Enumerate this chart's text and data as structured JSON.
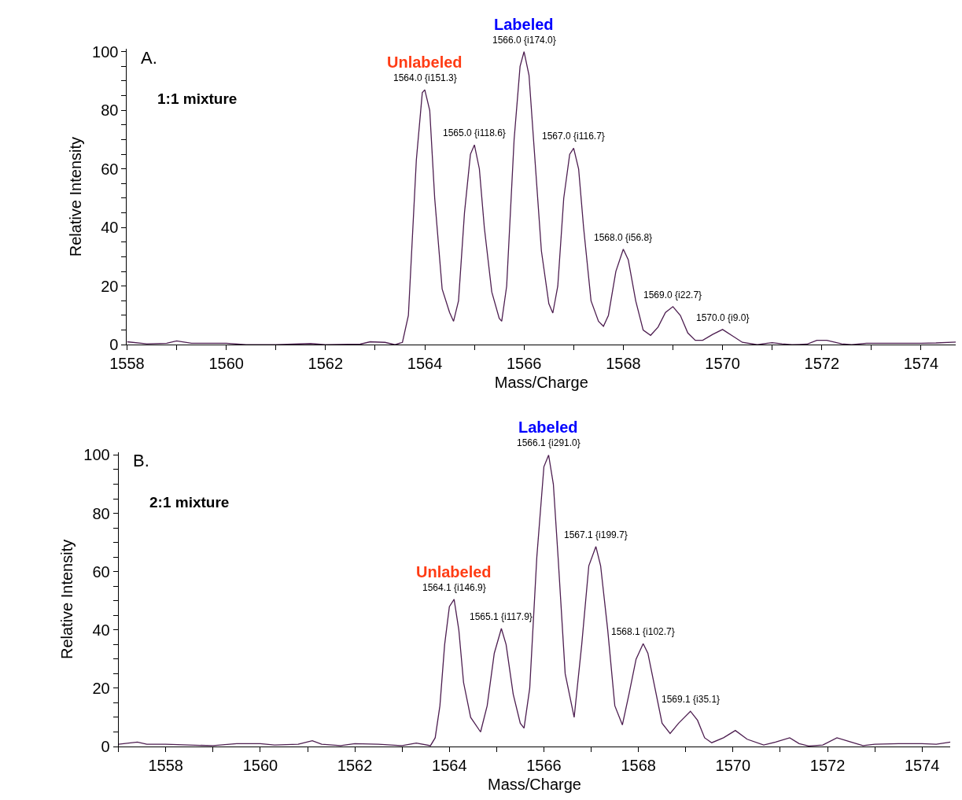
{
  "chart_data": [
    {
      "type": "line",
      "xlabel": "Mass/Charge",
      "ylabel": "Relative Intensity",
      "x": [
        1558.0,
        1558.4,
        1558.8,
        1559.0,
        1559.3,
        1560.0,
        1560.4,
        1561.0,
        1561.7,
        1562.0,
        1562.7,
        1562.9,
        1563.2,
        1563.4,
        1563.55,
        1563.67,
        1563.83,
        1563.95,
        1564.0,
        1564.1,
        1564.2,
        1564.35,
        1564.5,
        1564.58,
        1564.68,
        1564.8,
        1564.92,
        1565.0,
        1565.1,
        1565.2,
        1565.35,
        1565.5,
        1565.55,
        1565.65,
        1565.8,
        1565.92,
        1566.0,
        1566.1,
        1566.2,
        1566.35,
        1566.5,
        1566.58,
        1566.68,
        1566.8,
        1566.92,
        1567.0,
        1567.1,
        1567.2,
        1567.35,
        1567.5,
        1567.6,
        1567.7,
        1567.85,
        1568.0,
        1568.1,
        1568.25,
        1568.4,
        1568.55,
        1568.7,
        1568.85,
        1569.0,
        1569.15,
        1569.3,
        1569.45,
        1569.6,
        1569.8,
        1570.0,
        1570.2,
        1570.4,
        1570.7,
        1570.9,
        1571.0,
        1571.2,
        1571.4,
        1571.7,
        1571.9,
        1572.1,
        1572.4,
        1572.6,
        1572.9,
        1573.5,
        1574.0,
        1574.3,
        1574.7
      ],
      "series": [
        {
          "color": "#4d1e50",
          "values": [
            1.0,
            0.3,
            0.5,
            1.3,
            0.5,
            0.5,
            0,
            0,
            0.4,
            0,
            0.2,
            1.0,
            0.8,
            0,
            0.8,
            10,
            63,
            86,
            87,
            80,
            50,
            19,
            11,
            8,
            15,
            45,
            65,
            68.2,
            60,
            40,
            18,
            9,
            8,
            20,
            70,
            95,
            100,
            92,
            68,
            32,
            14,
            10.8,
            20,
            50,
            65,
            67.1,
            60,
            40,
            15,
            8,
            6.3,
            10,
            25,
            32.6,
            29,
            15,
            5,
            3.2,
            6,
            11,
            13.0,
            10,
            4,
            1.5,
            1.5,
            3.5,
            5.2,
            3,
            0.8,
            0,
            0.5,
            0.7,
            0.3,
            0,
            0.2,
            1.5,
            1.5,
            0.3,
            0,
            0.5,
            0.5,
            0.5,
            0.6,
            0.9
          ]
        }
      ],
      "xlim": [
        1558,
        1574.7
      ],
      "ylim": [
        0,
        101
      ],
      "xticks": [
        1558,
        {
          "value": 1559,
          "label": null
        },
        1560,
        {
          "value": 1561,
          "label": null
        },
        1562,
        {
          "value": 1563,
          "label": null
        },
        1564,
        {
          "value": 1565,
          "label": null
        },
        1566,
        {
          "value": 1567,
          "label": null
        },
        1568,
        {
          "value": 1569,
          "label": null
        },
        1570,
        {
          "value": 1571,
          "label": null
        },
        1572,
        {
          "value": 1573,
          "label": null
        },
        1574
      ],
      "yticks": [
        0,
        {
          "value": 5,
          "label": null
        },
        {
          "value": 10,
          "label": null
        },
        {
          "value": 15,
          "label": null
        },
        20,
        {
          "value": 25,
          "label": null
        },
        {
          "value": 30,
          "label": null
        },
        {
          "value": 35,
          "label": null
        },
        40,
        {
          "value": 45,
          "label": null
        },
        {
          "value": 50,
          "label": null
        },
        {
          "value": 55,
          "label": null
        },
        60,
        {
          "value": 65,
          "label": null
        },
        {
          "value": 70,
          "label": null
        },
        {
          "value": 75,
          "label": null
        },
        80,
        {
          "value": 85,
          "label": null
        },
        {
          "value": 90,
          "label": null
        },
        {
          "value": 95,
          "label": null
        },
        100
      ],
      "annotations": [
        "A.",
        "1:1 mixture",
        {
          "text": "1564.0 {i151.3}",
          "x": 1564.0,
          "y": 87
        },
        {
          "text": "Unlabeled",
          "x": 1564.0,
          "y": 87
        },
        {
          "text": "1565.0 {i118.6}",
          "x": 1565.0,
          "y": 68.2
        },
        {
          "text": "1566.0 {i174.0}",
          "x": 1566.0,
          "y": 100
        },
        {
          "text": "Labeled",
          "x": 1566.0,
          "y": 100
        },
        {
          "text": "1567.0 {i116.7}",
          "x": 1567.0,
          "y": 67.1
        },
        {
          "text": "1568.0 {i56.8}",
          "x": 1568.0,
          "y": 32.6
        },
        {
          "text": "1569.0 {i22.7}",
          "x": 1569.0,
          "y": 13.0
        },
        {
          "text": "1570.0 {i9.0}",
          "x": 1570.0,
          "y": 5.2
        }
      ]
    },
    {
      "type": "line",
      "xlabel": "Mass/Charge",
      "ylabel": "Relative Intensity",
      "x": [
        1557.0,
        1557.4,
        1557.6,
        1558.0,
        1558.5,
        1559.0,
        1559.5,
        1560.0,
        1560.3,
        1560.8,
        1561.1,
        1561.3,
        1561.7,
        1562.0,
        1562.5,
        1563.0,
        1563.3,
        1563.6,
        1563.7,
        1563.8,
        1563.9,
        1564.0,
        1564.1,
        1564.2,
        1564.3,
        1564.45,
        1564.66,
        1564.8,
        1564.95,
        1565.1,
        1565.2,
        1565.35,
        1565.5,
        1565.58,
        1565.7,
        1565.85,
        1566.0,
        1566.1,
        1566.2,
        1566.3,
        1566.45,
        1566.64,
        1566.8,
        1566.95,
        1567.1,
        1567.2,
        1567.35,
        1567.5,
        1567.66,
        1567.8,
        1567.95,
        1568.1,
        1568.2,
        1568.35,
        1568.5,
        1568.67,
        1568.85,
        1569.1,
        1569.25,
        1569.4,
        1569.55,
        1569.8,
        1570.05,
        1570.3,
        1570.65,
        1570.9,
        1571.2,
        1571.4,
        1571.6,
        1571.9,
        1572.2,
        1572.5,
        1572.75,
        1573.0,
        1573.5,
        1574.0,
        1574.3,
        1574.6
      ],
      "series": [
        {
          "color": "#4d1e50",
          "values": [
            0.8,
            1.5,
            0.8,
            0.8,
            0.5,
            0.3,
            1.0,
            1.0,
            0.5,
            0.8,
            2.0,
            0.8,
            0.3,
            1.0,
            0.8,
            0.3,
            1.2,
            0.3,
            3,
            14,
            35,
            48,
            50.5,
            40,
            22,
            10,
            5,
            14,
            32,
            40.5,
            35,
            18,
            8,
            6.3,
            20,
            65,
            96,
            100,
            90,
            65,
            25,
            10,
            35,
            62,
            68.6,
            62,
            40,
            14,
            7.4,
            18,
            30,
            35.3,
            32,
            20,
            8,
            4.5,
            8,
            12.1,
            9,
            3,
            1.3,
            3,
            5.5,
            2.5,
            0.5,
            1.5,
            3,
            1,
            0.2,
            0.5,
            3,
            1.5,
            0.3,
            0.8,
            1.0,
            1.0,
            0.8,
            1.5
          ]
        }
      ],
      "xlim": [
        1557,
        1574.6
      ],
      "ylim": [
        0,
        101
      ],
      "xticks": [
        {
          "value": 1557,
          "label": null
        },
        1558,
        {
          "value": 1559,
          "label": null
        },
        1560,
        {
          "value": 1561,
          "label": null
        },
        1562,
        {
          "value": 1563,
          "label": null
        },
        1564,
        {
          "value": 1565,
          "label": null
        },
        1566,
        {
          "value": 1567,
          "label": null
        },
        1568,
        {
          "value": 1569,
          "label": null
        },
        1570,
        {
          "value": 1571,
          "label": null
        },
        1572,
        {
          "value": 1573,
          "label": null
        },
        1574
      ],
      "yticks": [
        0,
        {
          "value": 5,
          "label": null
        },
        {
          "value": 10,
          "label": null
        },
        {
          "value": 15,
          "label": null
        },
        20,
        {
          "value": 25,
          "label": null
        },
        {
          "value": 30,
          "label": null
        },
        {
          "value": 35,
          "label": null
        },
        40,
        {
          "value": 45,
          "label": null
        },
        {
          "value": 50,
          "label": null
        },
        {
          "value": 55,
          "label": null
        },
        60,
        {
          "value": 65,
          "label": null
        },
        {
          "value": 70,
          "label": null
        },
        {
          "value": 75,
          "label": null
        },
        80,
        {
          "value": 85,
          "label": null
        },
        {
          "value": 90,
          "label": null
        },
        {
          "value": 95,
          "label": null
        },
        100
      ],
      "annotations": [
        "B.",
        "2:1 mixture",
        {
          "text": "1564.1 {i146.9}",
          "x": 1564.1,
          "y": 50.5
        },
        {
          "text": "Unlabeled",
          "x": 1564.1,
          "y": 50.5
        },
        {
          "text": "1565.1 {i117.9}",
          "x": 1565.1,
          "y": 40.5
        },
        {
          "text": "1566.1 {i291.0}",
          "x": 1566.1,
          "y": 100
        },
        {
          "text": "Labeled",
          "x": 1566.1,
          "y": 100
        },
        {
          "text": "1567.1 {i199.7}",
          "x": 1567.1,
          "y": 68.6
        },
        {
          "text": "1568.1 {i102.7}",
          "x": 1568.1,
          "y": 35.3
        },
        {
          "text": "1569.1 {i35.1}",
          "x": 1569.1,
          "y": 12.1
        }
      ]
    }
  ]
}
